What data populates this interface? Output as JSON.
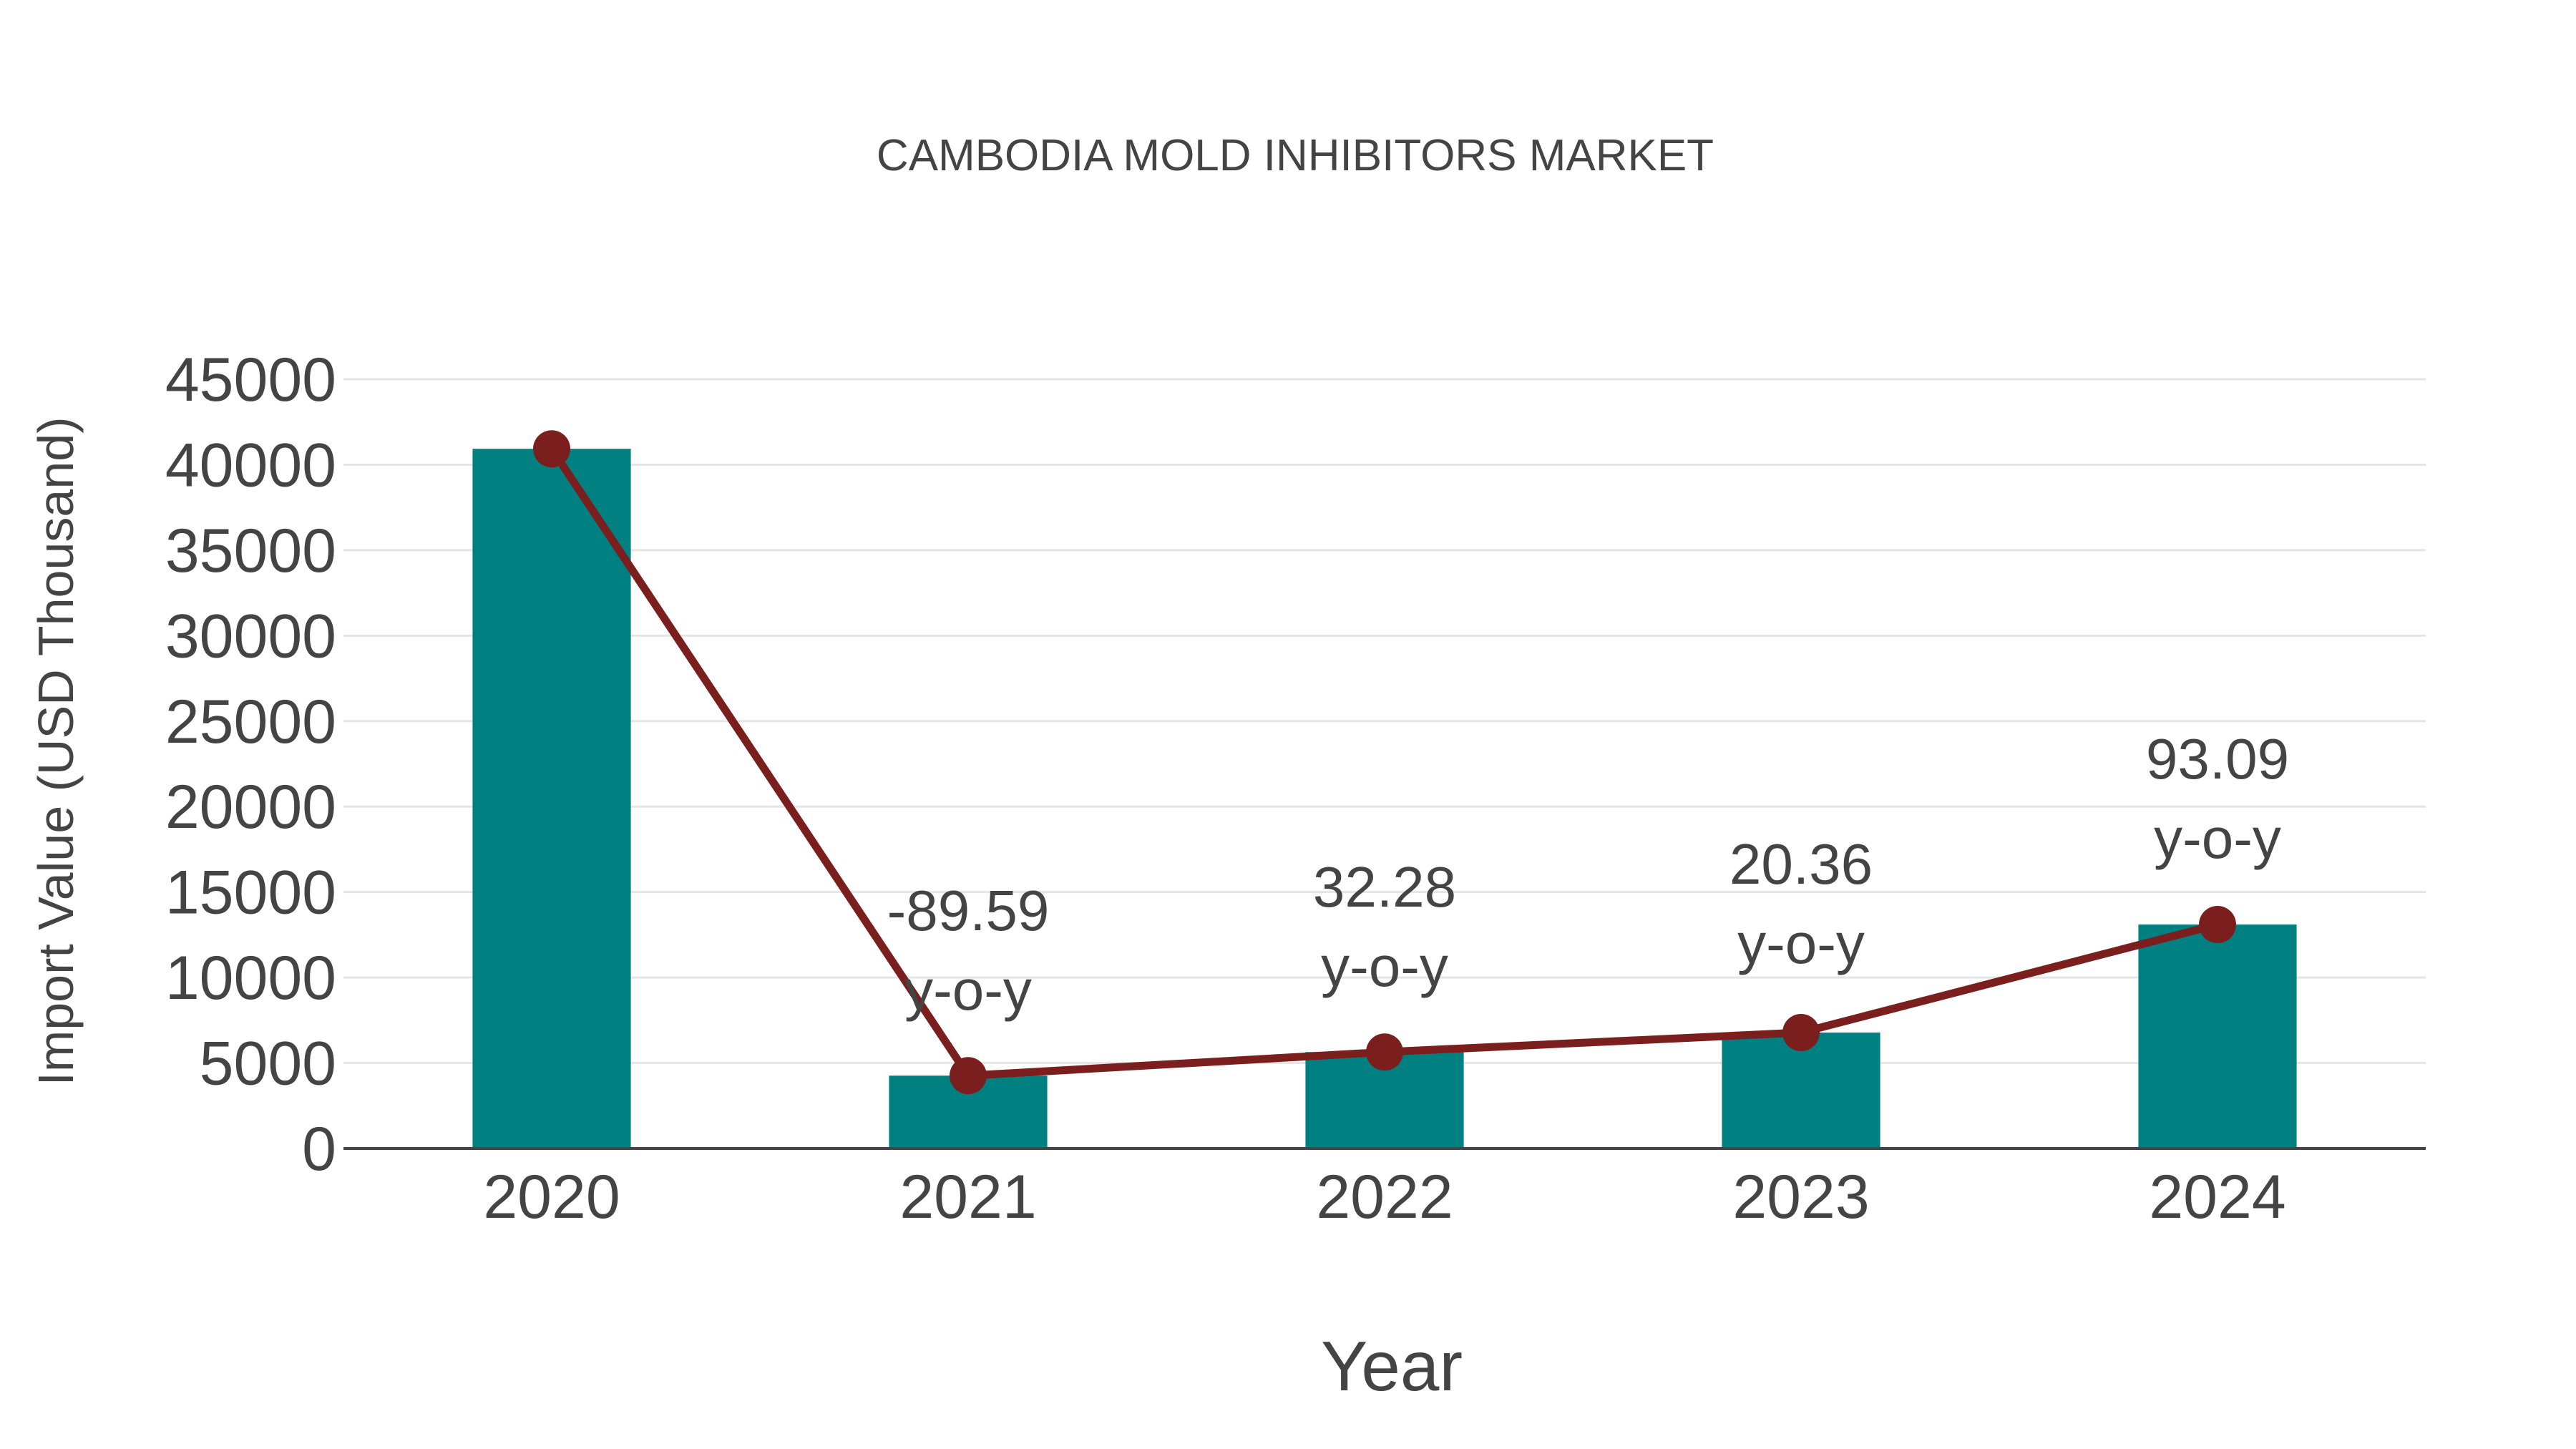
{
  "colors": {
    "bar": "#008080",
    "line": "#7b1e1e",
    "marker": "#7b1e1e",
    "text": "#444444",
    "grid": "#e5e5e5"
  },
  "chart_data": {
    "type": "bar",
    "title": "CAMBODIA MOLD INHIBITORS MARKET",
    "xlabel": "Year",
    "ylabel": "Import Value (USD Thousand)",
    "categories": [
      "2020",
      "2021",
      "2022",
      "2023",
      "2024"
    ],
    "ylim": [
      0,
      45000
    ],
    "yticks": [
      0,
      5000,
      10000,
      15000,
      20000,
      25000,
      30000,
      35000,
      40000,
      45000
    ],
    "grid": true,
    "legend": "none",
    "series": [
      {
        "name": "Import Value",
        "type": "bar",
        "values": [
          40930,
          4260,
          5640,
          6780,
          13100
        ]
      },
      {
        "name": "Trend",
        "type": "line",
        "values": [
          40930,
          4260,
          5640,
          6780,
          13100
        ]
      }
    ],
    "annotations": [
      {
        "category": "2021",
        "value": "-89.59",
        "unit": "y-o-y"
      },
      {
        "category": "2022",
        "value": "32.28",
        "unit": "y-o-y"
      },
      {
        "category": "2023",
        "value": "20.36",
        "unit": "y-o-y"
      },
      {
        "category": "2024",
        "value": "93.09",
        "unit": "y-o-y"
      }
    ]
  }
}
